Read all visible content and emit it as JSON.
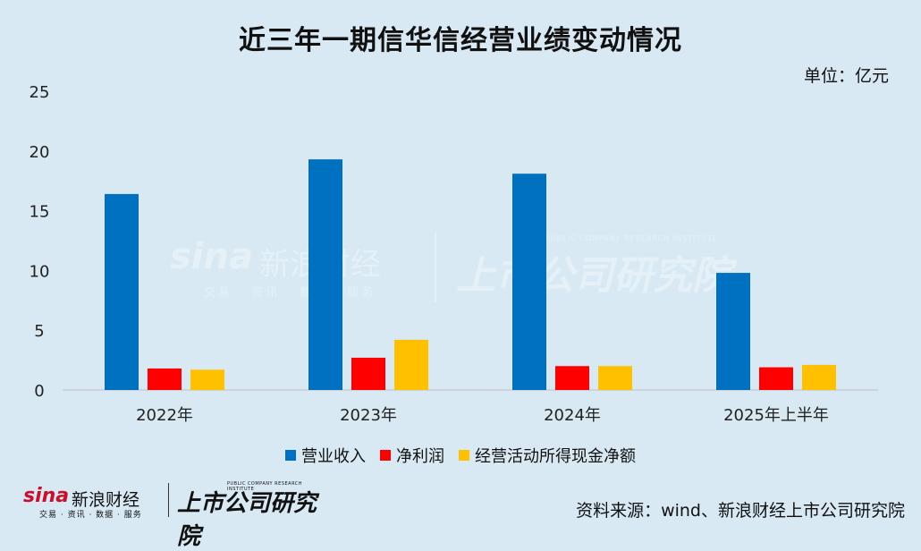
{
  "title": "近三年一期信华信经营业绩变动情况",
  "unit_label": "单位：亿元",
  "source": "资料来源：wind、新浪财经上市公司研究院",
  "watermark": {
    "brand": "sina",
    "brand_cn": "新浪财经",
    "sub": "交易 · 资讯 · 数据 · 服务",
    "institute": "上市公司研究院",
    "institute_en": "PUBLIC COMPANY RESEARCH INSTITUTE"
  },
  "colors": {
    "revenue": "#0070c0",
    "net_profit": "#ff0000",
    "cash_flow": "#ffc000",
    "background": "#d8e9f4",
    "axis": "#bfbfbf"
  },
  "chart_data": {
    "type": "bar",
    "categories": [
      "2022年",
      "2023年",
      "2024年",
      "2025年上半年"
    ],
    "series": [
      {
        "name": "营业收入",
        "values": [
          16.4,
          19.3,
          18.1,
          9.8
        ]
      },
      {
        "name": "净利润",
        "values": [
          1.8,
          2.7,
          2.0,
          1.9
        ]
      },
      {
        "name": "经营活动所得现金净额",
        "values": [
          1.7,
          4.2,
          2.0,
          2.1
        ]
      }
    ],
    "yticks": [
      0,
      5,
      10,
      15,
      20,
      25
    ],
    "ylim": [
      0,
      25
    ],
    "grid": false,
    "legend_position": "bottom"
  }
}
